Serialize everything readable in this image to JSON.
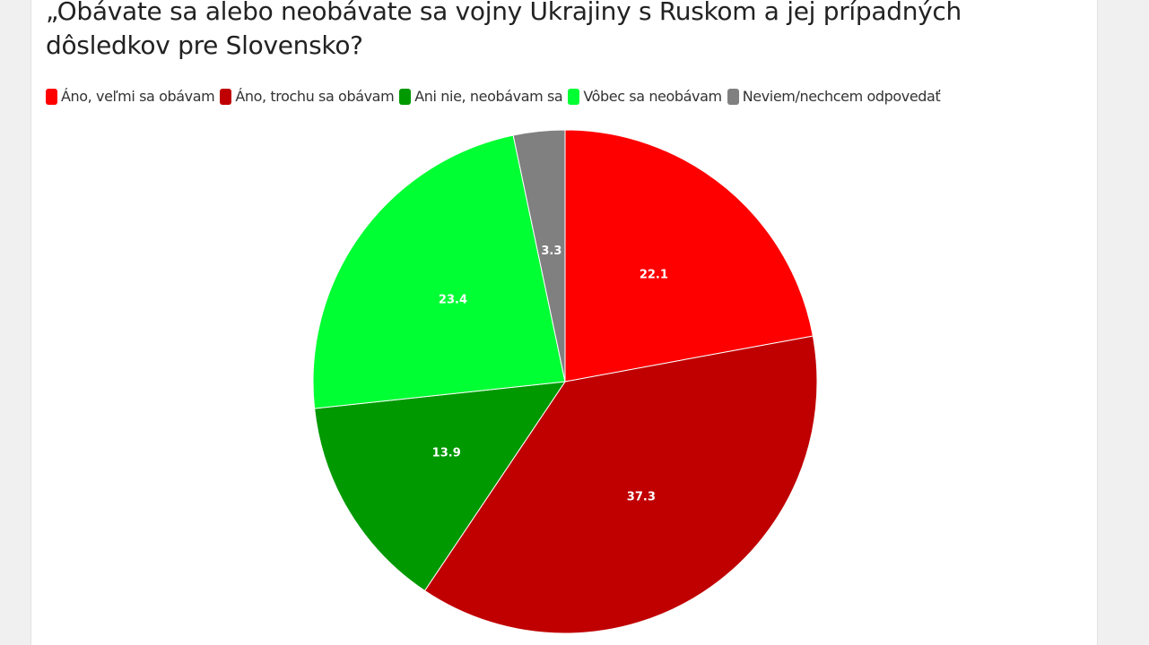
{
  "chart_data": {
    "type": "pie",
    "title": "„Obávate sa alebo neobávate sa vojny Ukrajiny s Ruskom a jej prípadných dôsledkov pre Slovensko?",
    "legend_position": "top-left",
    "slices": [
      {
        "name": "Áno, veľmi sa obávam",
        "value": 22.1,
        "color": "#ff0000"
      },
      {
        "name": "Áno, trochu sa obávam",
        "value": 37.3,
        "color": "#c00000"
      },
      {
        "name": "Ani nie, neobávam sa",
        "value": 13.9,
        "color": "#009900"
      },
      {
        "name": "Vôbec sa neobávam",
        "value": 23.4,
        "color": "#00ff33"
      },
      {
        "name": "Neviem/nechcem odpovedať",
        "value": 3.3,
        "color": "#808080"
      }
    ]
  }
}
